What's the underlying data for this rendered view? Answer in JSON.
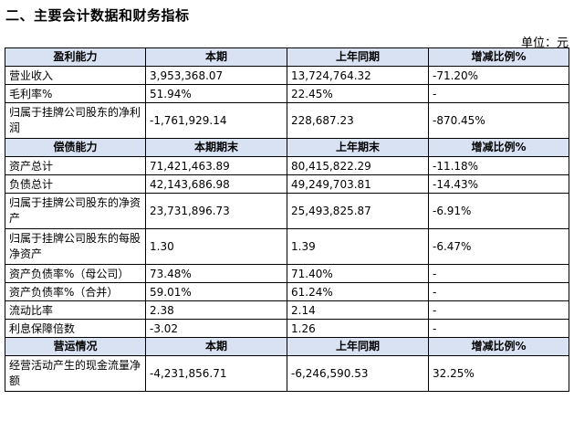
{
  "section_title": "二、主要会计数据和财务指标",
  "unit_label": "单位：元",
  "sections": [
    {
      "headers": [
        "盈利能力",
        "本期",
        "上年同期",
        "增减比例%"
      ],
      "rows": [
        [
          "营业收入",
          "3,953,368.07",
          "13,724,764.32",
          "-71.20%"
        ],
        [
          "毛利率%",
          "51.94%",
          "22.45%",
          "-"
        ],
        [
          "归属于挂牌公司股东的净利润",
          "-1,761,929.14",
          "228,687.23",
          "-870.45%"
        ]
      ]
    },
    {
      "headers": [
        "偿债能力",
        "本期期末",
        "上年期末",
        "增减比例%"
      ],
      "rows": [
        [
          "资产总计",
          "71,421,463.89",
          "80,415,822.29",
          "-11.18%"
        ],
        [
          "负债总计",
          "42,143,686.98",
          "49,249,703.81",
          "-14.43%"
        ],
        [
          "归属于挂牌公司股东的净资产",
          "23,731,896.73",
          "25,493,825.87",
          "-6.91%"
        ],
        [
          "归属于挂牌公司股东的每股净资产",
          "1.30",
          "1.39",
          "-6.47%"
        ],
        [
          "资产负债率%（母公司）",
          "73.48%",
          "71.40%",
          "-"
        ],
        [
          "资产负债率%（合并）",
          "59.01%",
          "61.24%",
          "-"
        ],
        [
          "流动比率",
          "2.38",
          "2.14",
          "-"
        ],
        [
          "利息保障倍数",
          "-3.02",
          "1.26",
          "-"
        ]
      ]
    },
    {
      "headers": [
        "营运情况",
        "本期",
        "上年同期",
        "增减比例%"
      ],
      "rows": [
        [
          "经营活动产生的现金流量净额",
          "-4,231,856.71",
          "-6,246,590.53",
          "32.25%"
        ]
      ]
    }
  ]
}
